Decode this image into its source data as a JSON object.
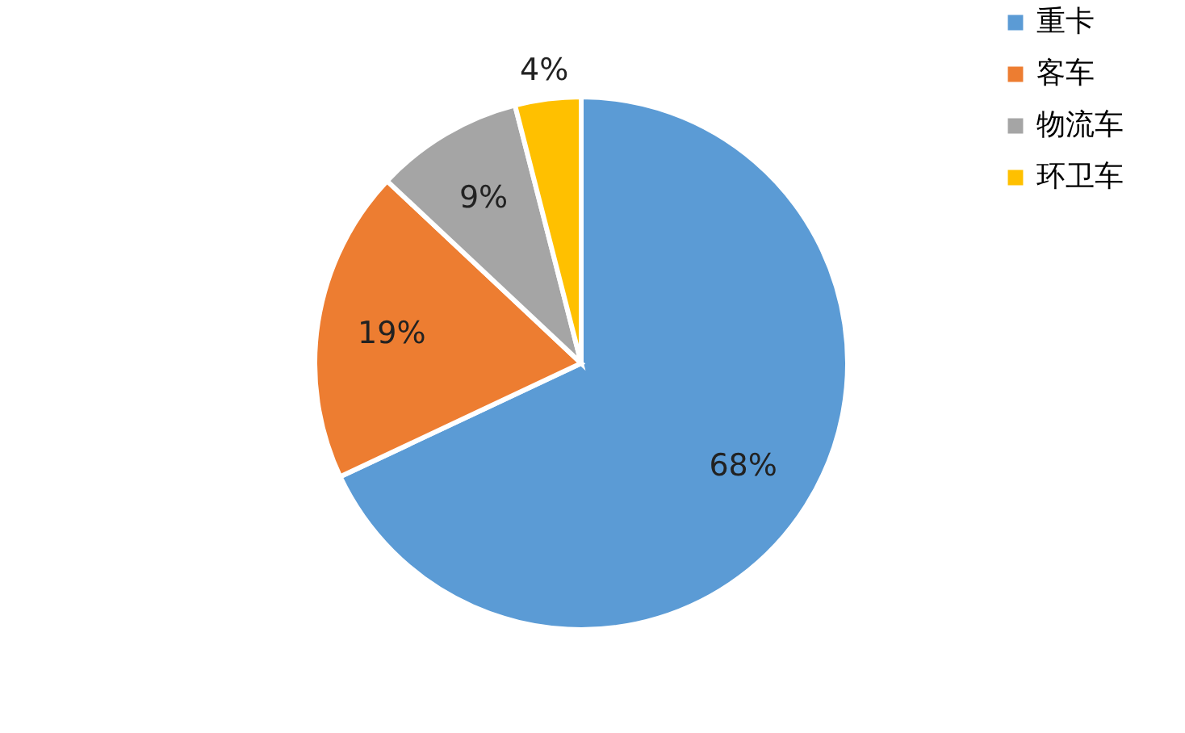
{
  "chart_data": {
    "type": "pie",
    "categories": [
      "重卡",
      "客车",
      "物流车",
      "环卫车"
    ],
    "values": [
      68,
      19,
      9,
      4
    ],
    "colors": [
      "#5b9bd5",
      "#ed7d31",
      "#a5a5a5",
      "#ffc000"
    ],
    "value_labels": [
      "68%",
      "19%",
      "9%",
      "4%"
    ],
    "legend": "right"
  }
}
